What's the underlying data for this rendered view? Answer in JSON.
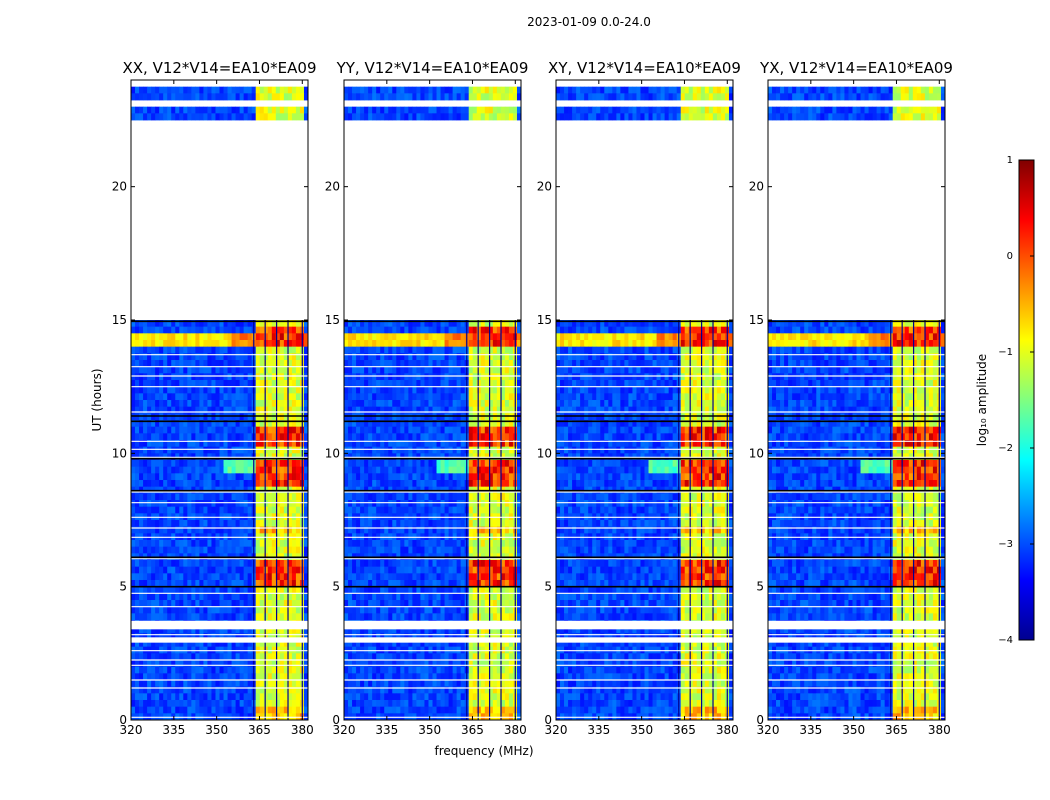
{
  "figure": {
    "suptitle": "2023-01-09 0.0-24.0",
    "ylabel": "UT (hours)",
    "xlabel": "frequency (MHz)"
  },
  "chart_data": {
    "type": "heatmap",
    "x": {
      "label": "frequency (MHz)",
      "range": [
        320,
        382
      ],
      "ticks": [
        320,
        335,
        350,
        365,
        380
      ]
    },
    "y": {
      "label": "UT (hours)",
      "range": [
        0,
        24
      ],
      "ticks": [
        0,
        5,
        10,
        15,
        20
      ]
    },
    "colorbar": {
      "label": "log₁₀ amplitude",
      "range": [
        -4,
        1
      ],
      "ticks": [
        -4,
        -3,
        -2,
        -1,
        0,
        1
      ],
      "tick_labels": [
        "−4",
        "−3",
        "−2",
        "−1",
        "0",
        "1"
      ],
      "colormap": [
        "#00008f",
        "#0000ff",
        "#0080ff",
        "#00ffff",
        "#80ff80",
        "#ffff00",
        "#ff8000",
        "#ff0000",
        "#800000"
      ]
    },
    "panels": [
      {
        "title": "XX, V12*V14=EA10*EA09",
        "show_ylabels": true
      },
      {
        "title": "YY, V12*V14=EA10*EA09",
        "show_ylabels": true
      },
      {
        "title": "XY, V12*V14=EA10*EA09",
        "show_ylabels": true
      },
      {
        "title": "YX, V12*V14=EA10*EA09",
        "show_ylabels": true
      }
    ],
    "bright_band_mhz": [
      363,
      380
    ],
    "bright_subband_edges_mhz": [
      363,
      367,
      371,
      375,
      380
    ],
    "gap_hours": [
      [
        15.0,
        22.6
      ],
      [
        23.0,
        23.3
      ],
      [
        23.7,
        24.0
      ]
    ],
    "white_flag_lines_hours": [
      0.1,
      1.2,
      1.5,
      2.05,
      2.25,
      2.6,
      2.95,
      3.2,
      3.55,
      3.7,
      4.25,
      4.75,
      5.0,
      6.05,
      6.85,
      7.2,
      7.6,
      8.15,
      8.55,
      9.85,
      10.15,
      10.45,
      11.55,
      12.5,
      12.9,
      13.25,
      13.7,
      14.95
    ],
    "white_flag_bands_hours": [
      [
        3.4,
        3.7
      ],
      [
        2.9,
        3.1
      ]
    ],
    "black_flag_lines_hours": [
      5.0,
      6.1,
      8.6,
      9.8,
      11.2,
      11.4,
      14.95
    ],
    "hot_segments_hours": [
      [
        5.1,
        5.9
      ],
      [
        8.8,
        9.8
      ],
      [
        10.2,
        11.1
      ],
      [
        13.9,
        14.8
      ]
    ],
    "weak_extra_segments_hours": [
      [
        0.1,
        0.6
      ],
      [
        6.9,
        7.3
      ]
    ],
    "broadband_rfi_hours": [
      [
        14.0,
        14.6
      ]
    ],
    "sideband_rfi_hours": [
      [
        9.3,
        9.8
      ]
    ]
  }
}
